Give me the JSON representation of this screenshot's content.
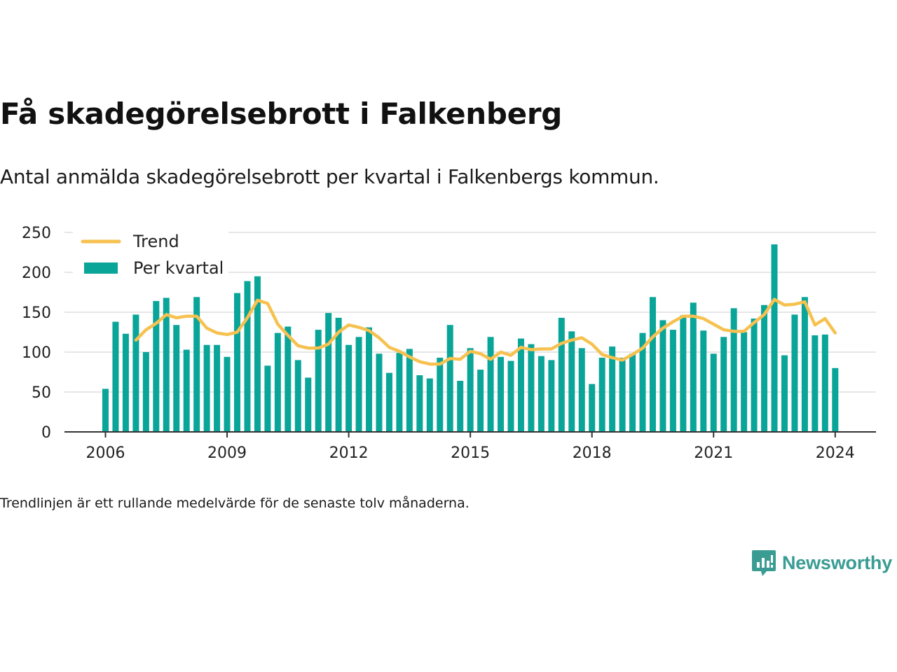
{
  "title": "Få skadegörelsebrott i Falkenberg",
  "subtitle": "Antal anmälda skadegörelsebrott per kvartal i Falkenbergs kommun.",
  "note": "Trendlinjen är ett rullande medelvärde för de senaste tolv månaderna.",
  "brand": {
    "name": "Newsworthy",
    "icon": "newsworthy-logo-icon"
  },
  "colors": {
    "bars": "#0aa599",
    "trend": "#f6c14f",
    "grid": "#dddddd",
    "axis": "#333333",
    "brand": "#3a9c93"
  },
  "chart_data": {
    "type": "bar",
    "grid": true,
    "legend_placement": "top-left",
    "ylim": [
      0,
      250
    ],
    "yticks": [
      0,
      50,
      100,
      150,
      200,
      250
    ],
    "xticks": [
      "2006",
      "2009",
      "2012",
      "2015",
      "2018",
      "2021",
      "2024"
    ],
    "x_start_year": 2006,
    "series": [
      {
        "name": "Per kvartal",
        "type": "bar",
        "values": [
          54,
          138,
          123,
          147,
          100,
          164,
          168,
          134,
          103,
          169,
          109,
          109,
          94,
          174,
          189,
          195,
          83,
          124,
          132,
          90,
          68,
          128,
          149,
          143,
          109,
          119,
          131,
          98,
          74,
          99,
          104,
          71,
          67,
          93,
          134,
          64,
          105,
          78,
          119,
          94,
          89,
          117,
          110,
          95,
          90,
          143,
          126,
          105,
          60,
          93,
          107,
          93,
          98,
          124,
          169,
          140,
          128,
          146,
          162,
          127,
          98,
          119,
          155,
          125,
          142,
          159,
          235,
          96,
          147,
          169,
          121,
          122,
          80
        ]
      },
      {
        "name": "Trend",
        "type": "line",
        "values": [
          null,
          null,
          null,
          115,
          128,
          136,
          147,
          143,
          145,
          145,
          130,
          124,
          122,
          125,
          143,
          165,
          161,
          135,
          121,
          108,
          105,
          105,
          110,
          125,
          134,
          131,
          127,
          118,
          106,
          101,
          94,
          88,
          85,
          85,
          92,
          91,
          101,
          98,
          91,
          100,
          96,
          106,
          103,
          104,
          104,
          111,
          115,
          118,
          110,
          97,
          93,
          90,
          97,
          105,
          119,
          130,
          138,
          145,
          145,
          142,
          135,
          128,
          126,
          126,
          137,
          147,
          166,
          159,
          160,
          163,
          134,
          142,
          124
        ]
      }
    ]
  }
}
